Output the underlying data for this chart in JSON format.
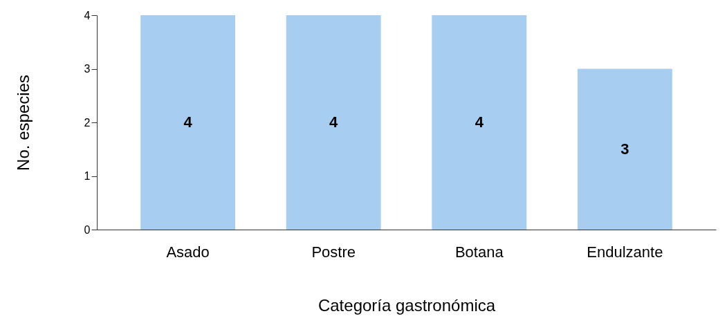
{
  "chart_data": {
    "type": "bar",
    "xlabel": "Categoría gastronómica",
    "ylabel": "No. especies",
    "categories": [
      "Asado",
      "Postre",
      "Botana",
      "Endulzante"
    ],
    "values": [
      4,
      4,
      4,
      3
    ],
    "color": "#a7cdf0",
    "ylim": [
      0,
      4
    ],
    "yticks": [
      0,
      1,
      2,
      3,
      4
    ],
    "grid": false,
    "data_labels": true
  }
}
